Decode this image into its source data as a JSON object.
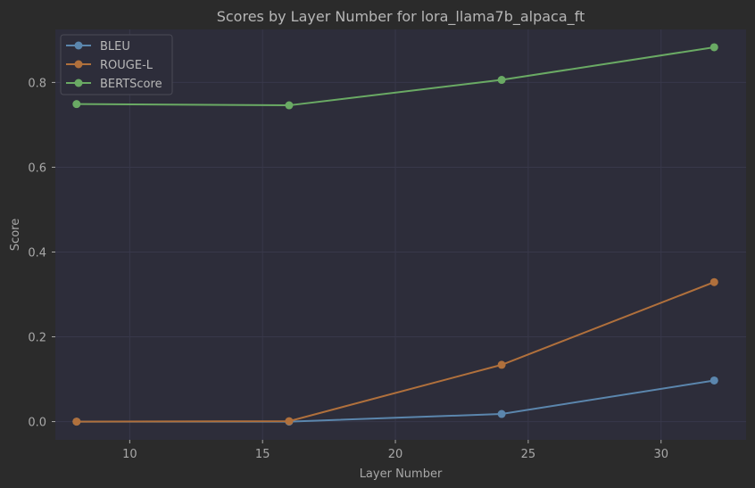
{
  "chart_data": {
    "type": "line",
    "title": "Scores by Layer Number for lora_llama7b_alpaca_ft",
    "xlabel": "Layer Number",
    "ylabel": "Score",
    "x": [
      8,
      16,
      24,
      32
    ],
    "xlim": [
      7.2,
      33.2
    ],
    "ylim": [
      -0.043,
      0.925
    ],
    "xticks": [
      10,
      15,
      20,
      25,
      30
    ],
    "yticks": [
      0.0,
      0.2,
      0.4,
      0.6,
      0.8
    ],
    "xtick_labels": [
      "10",
      "15",
      "20",
      "25",
      "30"
    ],
    "ytick_labels": [
      "0.0",
      "0.2",
      "0.4",
      "0.6",
      "0.8"
    ],
    "grid": true,
    "legend_position": "top-left",
    "series": [
      {
        "name": "BLEU",
        "color": "#5b86ad",
        "values": [
          0.0,
          0.0,
          0.018,
          0.097
        ]
      },
      {
        "name": "ROUGE-L",
        "color": "#b0703c",
        "values": [
          0.0,
          0.001,
          0.134,
          0.329
        ]
      },
      {
        "name": "BERTScore",
        "color": "#6aaa64",
        "values": [
          0.749,
          0.746,
          0.806,
          0.883
        ]
      }
    ]
  }
}
